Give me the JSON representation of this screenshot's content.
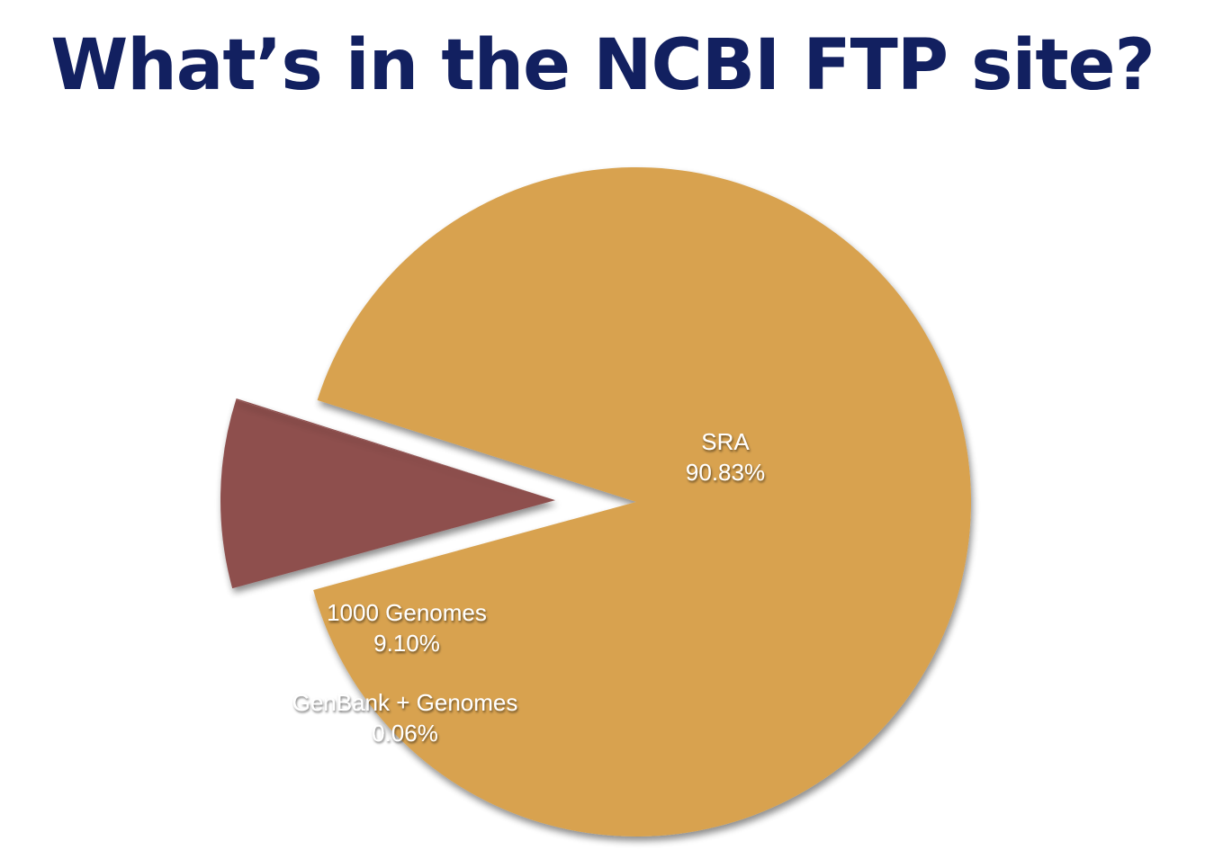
{
  "title": "What’s in the NCBI FTP site?",
  "colors": {
    "title": "#122060",
    "sra": "#D8A24F",
    "genomes_1000": "#8E4F4E",
    "genbank": "#8E4F4E",
    "background": "#FFFFFF",
    "label_text": "#FFFFFF"
  },
  "chart_data": {
    "type": "pie",
    "title": "What’s in the NCBI FTP site?",
    "slices": [
      {
        "name": "SRA",
        "percent_label": "90.83%",
        "value": 90.83,
        "color": "#D8A24F",
        "exploded": false
      },
      {
        "name": "1000 Genomes",
        "percent_label": "9.10%",
        "value": 9.1,
        "color": "#8E4F4E",
        "exploded": true
      },
      {
        "name": "GenBank + Genomes",
        "percent_label": "0.06%",
        "value": 0.06,
        "color": "#8E4F4E",
        "exploded": true
      }
    ],
    "legend": "none",
    "labels_on_slices": true
  }
}
